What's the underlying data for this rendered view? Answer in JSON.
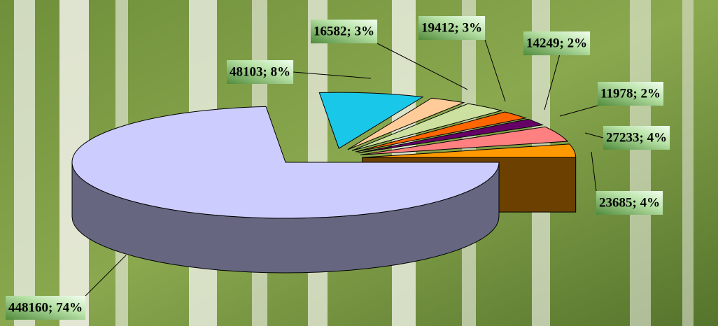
{
  "chart_data": {
    "type": "pie",
    "values": [
      448160,
      48103,
      16582,
      19412,
      14249,
      11978,
      27233,
      23685
    ],
    "value_labels": [
      "448160; 74%",
      "48103; 8%",
      "16582; 3%",
      "19412; 3%",
      "14249; 2%",
      "11978; 2%",
      "27233; 4%",
      "23685; 4%"
    ],
    "colors": [
      "#ccccff",
      "#19c8e8",
      "#ffcc99",
      "#cce0a0",
      "#ff6600",
      "#660066",
      "#ff8080",
      "#ff9900"
    ]
  }
}
